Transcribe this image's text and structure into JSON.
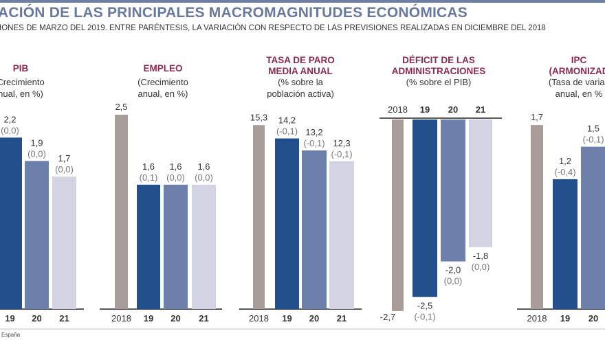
{
  "header": {
    "title": "ACIÓN DE LAS PRINCIPALES MACROMAGNITUDES ECONÓMICAS",
    "subtitle": "IONES DE MARZO DEL 2019. ENTRE PARÉNTESIS, LA VARIACIÓN CON RESPECTO DE LAS PREVISIONES REALIZADAS EN DICIEMBRE DEL 2018"
  },
  "footer": {
    "source": "España"
  },
  "colors": {
    "y2018": "#a89c98",
    "y19": "#234f8c",
    "y20": "#6c80ab",
    "y21": "#d3d3e4",
    "title": "#8a2a50",
    "header": "#67799f"
  },
  "chart_data": [
    {
      "type": "bar",
      "title": "PIB",
      "subtitle": [
        "Crecimiento",
        "nual, en %)"
      ],
      "categories": [
        "19",
        "20",
        "21"
      ],
      "values": [
        2.2,
        1.9,
        1.7
      ],
      "value_labels": [
        "2,2",
        "1,9",
        "1,7"
      ],
      "variation_labels": [
        "(0,0)",
        "(0,0)",
        "(0,0)"
      ],
      "unit": "%"
    },
    {
      "type": "bar",
      "title": "EMPLEO",
      "subtitle": [
        "(Crecimiento",
        "anual, en %)"
      ],
      "categories": [
        "2018",
        "19",
        "20",
        "21"
      ],
      "values": [
        2.5,
        1.6,
        1.6,
        1.6
      ],
      "value_labels": [
        "2,5",
        "1,6",
        "1,6",
        "1,6"
      ],
      "variation_labels": [
        "",
        "(0,1)",
        "(0,0)",
        "(0,0)"
      ],
      "unit": "%"
    },
    {
      "type": "bar",
      "title": [
        "TASA DE PARO",
        "MEDIA ANUAL"
      ],
      "subtitle": [
        "(% sobre la",
        "población activa)"
      ],
      "categories": [
        "2018",
        "19",
        "20",
        "21"
      ],
      "values": [
        15.3,
        14.2,
        13.2,
        12.3
      ],
      "value_labels": [
        "15,3",
        "14,2",
        "13,2",
        "12,3"
      ],
      "variation_labels": [
        "",
        "(-0,1)",
        "(-0,1)",
        "(-0,1)"
      ],
      "unit": "%"
    },
    {
      "type": "bar",
      "title": [
        "DÉFICIT DE LAS",
        "ADMINISTRACIONES"
      ],
      "subtitle": [
        "(% sobre el PIB)"
      ],
      "categories": [
        "2018",
        "19",
        "20",
        "21"
      ],
      "values": [
        -2.7,
        -2.5,
        -2.0,
        -1.8
      ],
      "value_labels": [
        "-2,7",
        "-2,5",
        "-2,0",
        "-1,8"
      ],
      "variation_labels": [
        "",
        "(-0,1)",
        "(0,0)",
        "(0,0)"
      ],
      "unit": "% PIB"
    },
    {
      "type": "bar",
      "title": [
        "IPC",
        "(ARMONIZAD"
      ],
      "subtitle": [
        "(Tasa de variac",
        "anual, en %"
      ],
      "categories": [
        "2018",
        "19",
        "20"
      ],
      "values": [
        1.7,
        1.2,
        1.5
      ],
      "value_labels": [
        "1,7",
        "1,2",
        "1,5"
      ],
      "variation_labels": [
        "",
        "(-0,4)",
        "(-0,1)"
      ],
      "unit": "%"
    }
  ]
}
